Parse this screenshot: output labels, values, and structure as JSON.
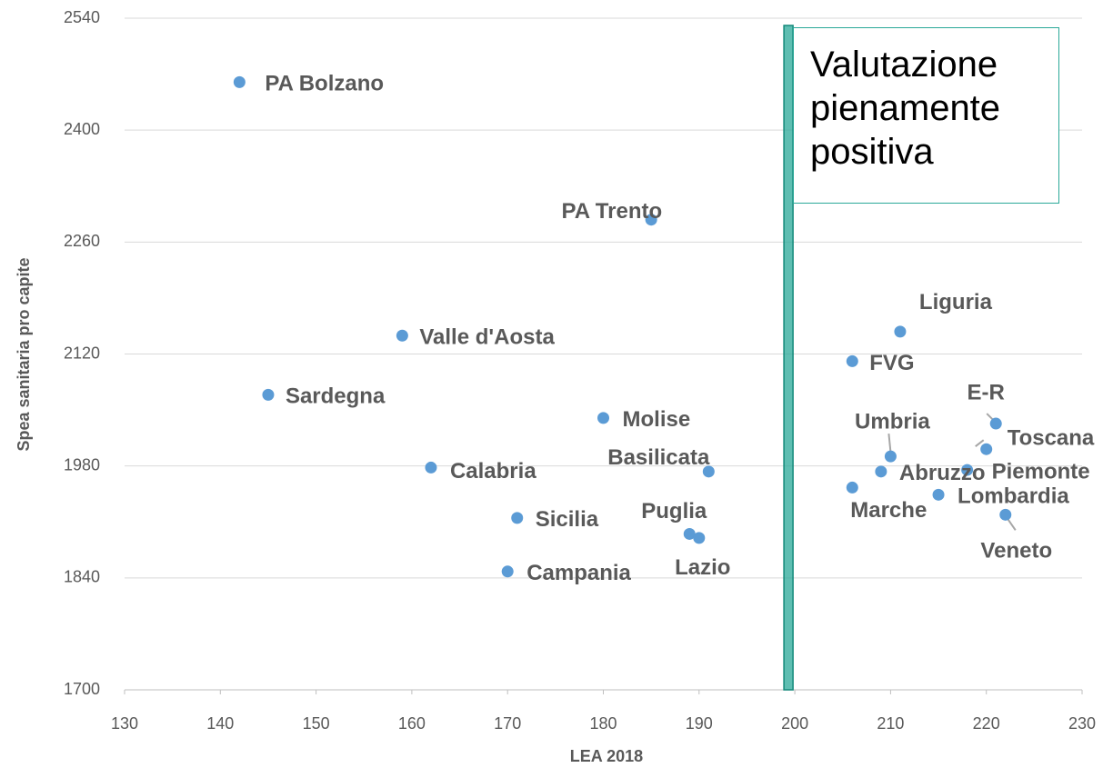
{
  "chart_data": {
    "type": "scatter",
    "x_label": "LEA 2018",
    "y_label": "Spea sanitaria pro capite",
    "annotation": "Valutazione pienamente positiva",
    "reference_x": 200,
    "color": "#5b9bd5",
    "reference_color": "#2aa898",
    "grid": true,
    "xlim": [
      130,
      230
    ],
    "xticks": [
      130,
      140,
      150,
      160,
      170,
      180,
      190,
      200,
      210,
      220,
      230
    ],
    "ylim": [
      1700,
      2540
    ],
    "yticks": [
      1700,
      1840,
      1980,
      2120,
      2260,
      2400,
      2540
    ],
    "labels": [
      "PA Bolzano",
      "PA Trento",
      "Valle d'Aosta",
      "Sardegna",
      "Molise",
      "Calabria",
      "Basilicata",
      "Sicilia",
      "Puglia",
      "Lazio",
      "Campania",
      "Liguria",
      "FVG",
      "E-R",
      "Toscana",
      "Umbria",
      "Piemonte",
      "Abruzzo",
      "Marche",
      "Lombardia",
      "Veneto"
    ],
    "x": [
      142,
      185,
      159,
      145,
      180,
      162,
      191,
      171,
      189,
      190,
      170,
      211,
      206,
      221,
      220,
      210,
      218,
      209,
      206,
      215,
      222
    ],
    "y": [
      2460,
      2288,
      2143,
      2069,
      2040,
      1978,
      1973,
      1915,
      1895,
      1890,
      1848,
      2148,
      2111,
      2033,
      2001,
      1992,
      1975,
      1973,
      1953,
      1944,
      1919
    ]
  }
}
